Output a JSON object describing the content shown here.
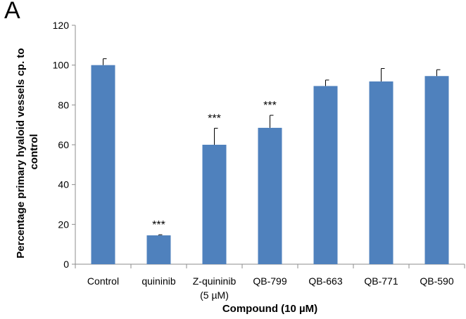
{
  "panel_label": "A",
  "chart_data": {
    "type": "bar",
    "categories": [
      [
        "Control"
      ],
      [
        "quininib"
      ],
      [
        "Z-quininib",
        "(5 µM)"
      ],
      [
        "QB-799"
      ],
      [
        "QB-663"
      ],
      [
        "QB-771"
      ],
      [
        "QB-590"
      ]
    ],
    "values": [
      100,
      14.5,
      60,
      68.5,
      89.5,
      91.8,
      94.5
    ],
    "error_plus": [
      3.2,
      0.3,
      8.3,
      6.3,
      3.0,
      6.5,
      3.2
    ],
    "significance": [
      "",
      "***",
      "***",
      "***",
      "",
      "",
      ""
    ],
    "xlabel": "Compound (10 µM)",
    "ylabel_line1": "Percentage primary hyaloid vessels cp. to",
    "ylabel_line2": "control",
    "ylim": [
      0,
      120
    ],
    "yticks": [
      0,
      20,
      40,
      60,
      80,
      100,
      120
    ],
    "grid": false,
    "bar_color": "#4f81bd",
    "axis_color": "#8c8c8c"
  }
}
